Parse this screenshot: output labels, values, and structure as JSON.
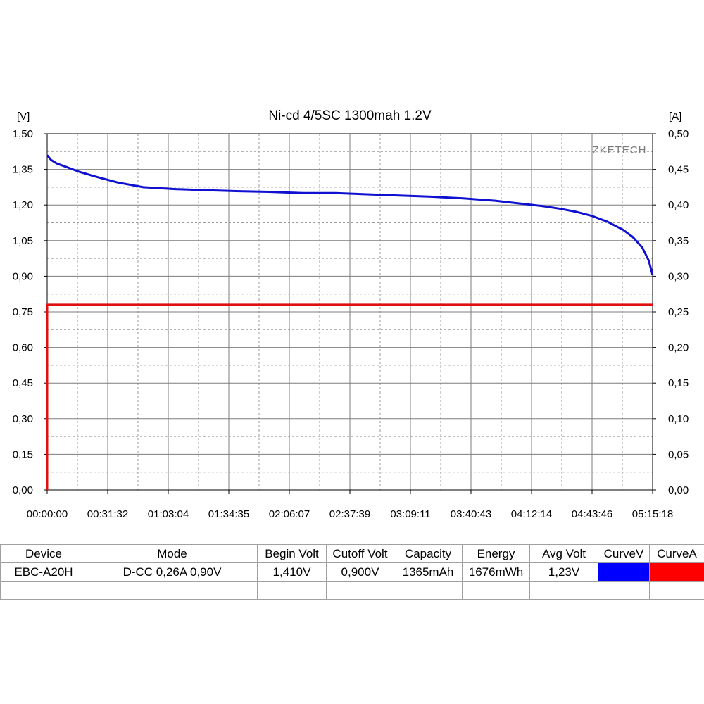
{
  "chart_data": {
    "type": "line",
    "title": "Ni-cd 4/5SC 1300mah 1.2V",
    "y_left_unit": "[V]",
    "y_right_unit": "[A]",
    "watermark": "ZKETECH",
    "y_left_ticks": [
      "1,50",
      "1,35",
      "1,20",
      "1,05",
      "0,90",
      "0,75",
      "0,60",
      "0,45",
      "0,30",
      "0,15",
      "0,00"
    ],
    "y_right_ticks": [
      "0,50",
      "0,45",
      "0,40",
      "0,35",
      "0,30",
      "0,25",
      "0,20",
      "0,15",
      "0,10",
      "0,05",
      "0,00"
    ],
    "x_ticks": [
      "00:00:00",
      "00:31:32",
      "01:03:04",
      "01:34:35",
      "02:06:07",
      "02:37:39",
      "03:09:11",
      "03:40:43",
      "04:12:14",
      "04:43:46",
      "05:15:18"
    ],
    "xlim_seconds": [
      0,
      18918
    ],
    "ylim_left": [
      0,
      1.5
    ],
    "ylim_right": [
      0,
      0.5
    ],
    "grid": true,
    "series": [
      {
        "axis": "left",
        "color": "#1010d0",
        "x_seconds": [
          0,
          120,
          300,
          600,
          1000,
          1500,
          2200,
          3000,
          4000,
          5000,
          6000,
          7000,
          8000,
          9000,
          10000,
          11000,
          12000,
          13000,
          14000,
          14500,
          15000,
          15500,
          16000,
          16500,
          17000,
          17500,
          18000,
          18300,
          18600,
          18800,
          18918
        ],
        "values": [
          1.41,
          1.39,
          1.375,
          1.36,
          1.34,
          1.32,
          1.295,
          1.275,
          1.267,
          1.262,
          1.258,
          1.255,
          1.25,
          1.25,
          1.245,
          1.24,
          1.235,
          1.228,
          1.218,
          1.21,
          1.203,
          1.195,
          1.185,
          1.172,
          1.155,
          1.13,
          1.095,
          1.065,
          1.02,
          0.965,
          0.905
        ]
      },
      {
        "axis": "right",
        "color": "#e01010",
        "x_seconds": [
          0,
          0,
          18918
        ],
        "values": [
          0,
          0.26,
          0.26
        ]
      }
    ]
  },
  "table": {
    "headers": [
      "Device",
      "Mode",
      "Begin Volt",
      "Cutoff Volt",
      "Capacity",
      "Energy",
      "Avg Volt",
      "CurveV",
      "CurveA"
    ],
    "row": [
      "EBC-A20H",
      "D-CC  0,26A  0,90V",
      "1,410V",
      "0,900V",
      "1365mAh",
      "1676mWh",
      "1,23V"
    ],
    "curve_v_color": "#0000ff",
    "curve_a_color": "#ff0000"
  }
}
